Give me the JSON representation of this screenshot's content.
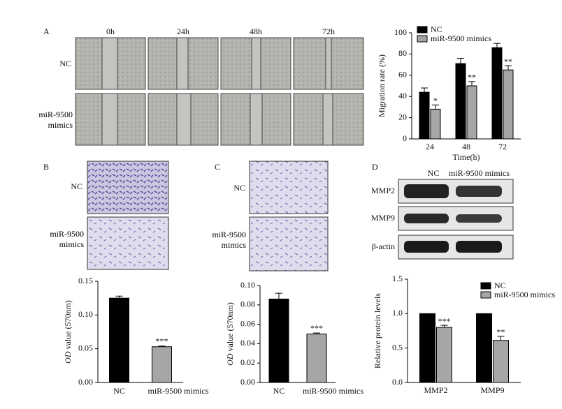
{
  "figure": {
    "panel_a": {
      "letter": "A",
      "times": [
        "0h",
        "24h",
        "48h",
        "72h"
      ],
      "rows": [
        "NC",
        "miR-9500 mimics"
      ]
    },
    "panel_b": {
      "letter": "B",
      "rows": [
        "NC",
        "miR-9500 mimics"
      ]
    },
    "panel_c": {
      "letter": "C",
      "rows": [
        "NC",
        "miR-9500 mimics"
      ]
    },
    "panel_d": {
      "letter": "D",
      "lanes": [
        "NC",
        "miR-9500 mimics"
      ],
      "bands": [
        "MMP2",
        "MMP9",
        "β-actin"
      ]
    }
  },
  "chart_data": [
    {
      "type": "grouped_bar",
      "ylabel": {
        "text": "Migration rate (%)"
      },
      "xlabel": "Time(h)",
      "categories": [
        "24",
        "48",
        "72"
      ],
      "series": [
        {
          "name": "NC",
          "color": "#000000",
          "values": [
            44,
            71,
            86
          ],
          "errors": [
            4,
            5,
            4
          ]
        },
        {
          "name": "miR-9500 mimics",
          "color": "#a6a6a6",
          "values": [
            28,
            50,
            65
          ],
          "errors": [
            4,
            4,
            4
          ],
          "significance": [
            "*",
            "**",
            "**"
          ]
        }
      ],
      "ylim": [
        0,
        100
      ],
      "yticks": [
        0,
        20,
        40,
        60,
        80,
        100
      ],
      "legend": "top-left"
    },
    {
      "type": "bar",
      "ylabel": {
        "italic": "OD",
        "text": "value (570nm)"
      },
      "categories": [
        "NC",
        "miR-9500 mimics"
      ],
      "colors": [
        "#000000",
        "#a6a6a6"
      ],
      "values": [
        0.125,
        0.053
      ],
      "errors": [
        0.003,
        0.001
      ],
      "significance": [
        null,
        "***"
      ],
      "ylim": [
        0,
        0.15
      ],
      "yticks": [
        {
          "value": 0,
          "label": "0.00"
        },
        0.05,
        {
          "value": 0.1,
          "label": "0.10"
        },
        0.15
      ]
    },
    {
      "type": "bar",
      "ylabel": {
        "italic": "OD",
        "text": "value (570nm)"
      },
      "categories": [
        "NC",
        "miR-9500 mimics"
      ],
      "colors": [
        "#000000",
        "#a6a6a6"
      ],
      "values": [
        0.086,
        0.05
      ],
      "errors": [
        0.006,
        0.001
      ],
      "significance": [
        null,
        "***"
      ],
      "ylim": [
        0,
        0.1
      ],
      "yticks": [
        {
          "value": 0,
          "label": "0.00"
        },
        0.02,
        0.04,
        0.06,
        0.08,
        {
          "value": 0.1,
          "label": "0.10"
        }
      ]
    },
    {
      "type": "grouped_bar",
      "ylabel": {
        "text": "Relative protein levels"
      },
      "categories": [
        "MMP2",
        "MMP9"
      ],
      "series": [
        {
          "name": "NC",
          "color": "#000000",
          "values": [
            1.0,
            1.0
          ],
          "errors": [
            0,
            0
          ]
        },
        {
          "name": "miR-9500 mimics",
          "color": "#a6a6a6",
          "values": [
            0.8,
            0.61
          ],
          "errors": [
            0.03,
            0.06
          ],
          "significance": [
            "***",
            "**"
          ]
        }
      ],
      "ylim": [
        0,
        1.5
      ],
      "yticks": [
        {
          "value": 0,
          "label": "0.0"
        },
        0.5,
        {
          "value": 1,
          "label": "1.0"
        },
        1.5
      ],
      "legend": "top-right"
    }
  ]
}
